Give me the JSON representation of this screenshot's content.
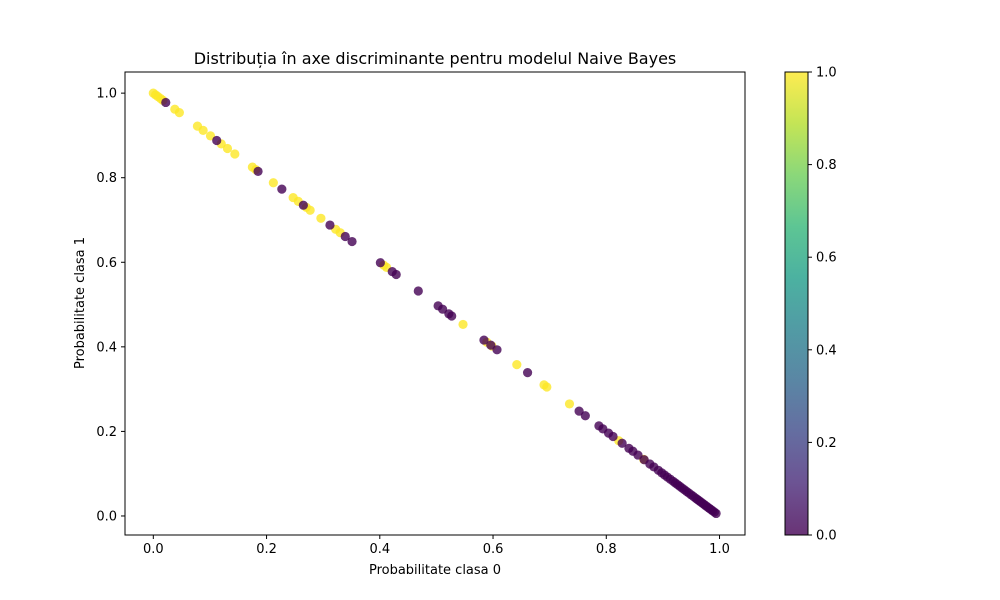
{
  "chart_data": {
    "type": "scatter",
    "title": "Distribuția în axe discriminante pentru modelul Naive Bayes",
    "xlabel": "Probabilitate clasa 0",
    "ylabel": "Probabilitate clasa 1",
    "xlim": [
      -0.05,
      1.045
    ],
    "ylim": [
      -0.045,
      1.05
    ],
    "xticks": [
      "0.0",
      "0.2",
      "0.4",
      "0.6",
      "0.8",
      "1.0"
    ],
    "yticks": [
      "0.0",
      "0.2",
      "0.4",
      "0.6",
      "0.8",
      "1.0"
    ],
    "grid": false,
    "colormap": "viridis",
    "colorbar": {
      "range": [
        0,
        1
      ],
      "ticks": [
        "0.0",
        "0.2",
        "0.4",
        "0.6",
        "0.8",
        "1.0"
      ],
      "colors": [
        "#440154",
        "#482878",
        "#3e4989",
        "#31688e",
        "#26828e",
        "#1f9e89",
        "#35b779",
        "#6ece58",
        "#b5de2b",
        "#fde725"
      ]
    },
    "alpha": 0.8,
    "class0_points": [
      [
        0.022,
        0.978
      ],
      [
        0.112,
        0.888
      ],
      [
        0.185,
        0.815
      ],
      [
        0.227,
        0.773
      ],
      [
        0.265,
        0.735
      ],
      [
        0.312,
        0.688
      ],
      [
        0.339,
        0.661
      ],
      [
        0.351,
        0.649
      ],
      [
        0.401,
        0.599
      ],
      [
        0.422,
        0.578
      ],
      [
        0.429,
        0.571
      ],
      [
        0.468,
        0.532
      ],
      [
        0.503,
        0.497
      ],
      [
        0.511,
        0.489
      ],
      [
        0.522,
        0.478
      ],
      [
        0.527,
        0.473
      ],
      [
        0.584,
        0.416
      ],
      [
        0.596,
        0.404
      ],
      [
        0.607,
        0.393
      ],
      [
        0.661,
        0.339
      ],
      [
        0.752,
        0.248
      ],
      [
        0.763,
        0.237
      ],
      [
        0.787,
        0.213
      ],
      [
        0.794,
        0.206
      ],
      [
        0.804,
        0.196
      ],
      [
        0.812,
        0.188
      ],
      [
        0.828,
        0.172
      ],
      [
        0.84,
        0.16
      ],
      [
        0.847,
        0.153
      ],
      [
        0.856,
        0.144
      ],
      [
        0.867,
        0.133
      ],
      [
        0.877,
        0.123
      ],
      [
        0.884,
        0.116
      ],
      [
        0.892,
        0.108
      ],
      [
        0.898,
        0.102
      ],
      [
        0.903,
        0.097
      ],
      [
        0.908,
        0.092
      ],
      [
        0.913,
        0.087
      ],
      [
        0.918,
        0.082
      ],
      [
        0.922,
        0.078
      ],
      [
        0.926,
        0.074
      ],
      [
        0.93,
        0.07
      ],
      [
        0.934,
        0.066
      ],
      [
        0.938,
        0.062
      ],
      [
        0.942,
        0.058
      ],
      [
        0.946,
        0.054
      ],
      [
        0.95,
        0.05
      ],
      [
        0.954,
        0.046
      ],
      [
        0.958,
        0.042
      ],
      [
        0.961,
        0.039
      ],
      [
        0.964,
        0.036
      ],
      [
        0.967,
        0.033
      ],
      [
        0.97,
        0.03
      ],
      [
        0.973,
        0.027
      ],
      [
        0.976,
        0.024
      ],
      [
        0.979,
        0.021
      ],
      [
        0.982,
        0.018
      ],
      [
        0.985,
        0.015
      ],
      [
        0.988,
        0.012
      ],
      [
        0.991,
        0.009
      ],
      [
        0.994,
        0.006
      ]
    ],
    "class1_points": [
      [
        0.0,
        1.0
      ],
      [
        0.004,
        0.996
      ],
      [
        0.008,
        0.992
      ],
      [
        0.013,
        0.987
      ],
      [
        0.017,
        0.983
      ],
      [
        0.038,
        0.962
      ],
      [
        0.046,
        0.954
      ],
      [
        0.078,
        0.922
      ],
      [
        0.088,
        0.912
      ],
      [
        0.101,
        0.899
      ],
      [
        0.12,
        0.88
      ],
      [
        0.131,
        0.869
      ],
      [
        0.144,
        0.856
      ],
      [
        0.175,
        0.825
      ],
      [
        0.181,
        0.819
      ],
      [
        0.212,
        0.788
      ],
      [
        0.247,
        0.753
      ],
      [
        0.256,
        0.744
      ],
      [
        0.27,
        0.73
      ],
      [
        0.277,
        0.723
      ],
      [
        0.296,
        0.704
      ],
      [
        0.322,
        0.678
      ],
      [
        0.33,
        0.67
      ],
      [
        0.407,
        0.593
      ],
      [
        0.412,
        0.588
      ],
      [
        0.547,
        0.453
      ],
      [
        0.589,
        0.411
      ],
      [
        0.598,
        0.402
      ],
      [
        0.642,
        0.358
      ],
      [
        0.69,
        0.31
      ],
      [
        0.695,
        0.305
      ],
      [
        0.735,
        0.265
      ],
      [
        0.822,
        0.178
      ],
      [
        0.866,
        0.134
      ]
    ]
  }
}
